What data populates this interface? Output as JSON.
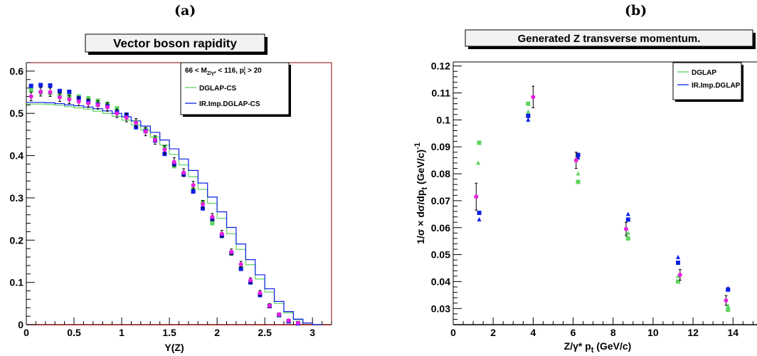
{
  "panels": {
    "a": {
      "label": "(a)"
    },
    "b": {
      "label": "(b)"
    }
  },
  "colors": {
    "frame": "#8b0000",
    "green": "#5fd35f",
    "blue": "#0a1ee6",
    "magenta": "#e81fe0",
    "black": "#000000"
  },
  "chart_data": [
    {
      "type": "scatter",
      "title": "Vector boson rapidity",
      "xlabel": "Y(Z)",
      "ylabel": "",
      "xlim": [
        0,
        3.2
      ],
      "ylim": [
        0,
        0.62
      ],
      "xticks": [
        0,
        0.5,
        1,
        1.5,
        2,
        2.5,
        3
      ],
      "xtick_labels": [
        "0",
        "0.5",
        "1",
        "1.5",
        "2",
        "2.5",
        "3"
      ],
      "yticks": [
        0,
        0.1,
        0.2,
        0.3,
        0.4,
        0.5,
        0.6
      ],
      "ytick_labels": [
        "0",
        "0.1",
        "0.2",
        "0.3",
        "0.4",
        "0.5",
        "0.6"
      ],
      "legend": {
        "position": "top-right",
        "header": "66 < M_{Z/γ*} < 116, p_t^l > 20",
        "entries": [
          {
            "name": "DGLAP-CS",
            "color": "#5fd35f"
          },
          {
            "name": "IR.Imp.DGLAP-CS",
            "color": "#0a1ee6"
          }
        ]
      },
      "histograms": [
        {
          "name": "DGLAP-CS",
          "color": "#5fd35f",
          "edges": [
            0,
            0.1,
            0.2,
            0.3,
            0.4,
            0.5,
            0.6,
            0.7,
            0.8,
            0.9,
            1.0,
            1.1,
            1.2,
            1.3,
            1.4,
            1.5,
            1.6,
            1.7,
            1.8,
            1.9,
            2.0,
            2.1,
            2.2,
            2.3,
            2.4,
            2.5,
            2.6,
            2.7,
            2.8,
            2.9,
            3.0,
            3.1
          ],
          "values": [
            0.522,
            0.522,
            0.521,
            0.519,
            0.516,
            0.513,
            0.51,
            0.505,
            0.5,
            0.493,
            0.484,
            0.473,
            0.46,
            0.444,
            0.425,
            0.403,
            0.378,
            0.35,
            0.32,
            0.287,
            0.252,
            0.215,
            0.178,
            0.142,
            0.108,
            0.077,
            0.05,
            0.028,
            0.012,
            0.004,
            0.0
          ]
        },
        {
          "name": "IR.Imp.DGLAP-CS",
          "color": "#0a1ee6",
          "edges": [
            0,
            0.1,
            0.2,
            0.3,
            0.4,
            0.5,
            0.6,
            0.7,
            0.8,
            0.9,
            1.0,
            1.1,
            1.2,
            1.3,
            1.4,
            1.5,
            1.6,
            1.7,
            1.8,
            1.9,
            2.0,
            2.1,
            2.2,
            2.3,
            2.4,
            2.5,
            2.6,
            2.7,
            2.8,
            2.9,
            3.0,
            3.1
          ],
          "values": [
            0.526,
            0.526,
            0.525,
            0.523,
            0.52,
            0.518,
            0.515,
            0.511,
            0.506,
            0.5,
            0.492,
            0.482,
            0.47,
            0.455,
            0.437,
            0.416,
            0.392,
            0.365,
            0.335,
            0.302,
            0.267,
            0.23,
            0.191,
            0.154,
            0.118,
            0.085,
            0.055,
            0.031,
            0.013,
            0.004,
            0.0
          ]
        }
      ],
      "markers": [
        {
          "name": "green-squares",
          "shape": "square",
          "color": "#5fd35f",
          "x": [
            0.05,
            0.15,
            0.25,
            0.35,
            0.45,
            0.55,
            0.65,
            0.75,
            0.85,
            0.95,
            1.05,
            1.15,
            1.25,
            1.35,
            1.45,
            1.55,
            1.65,
            1.75,
            1.85,
            1.95,
            2.05,
            2.15,
            2.25,
            2.35,
            2.45,
            2.55,
            2.65,
            2.75,
            2.85
          ],
          "y": [
            0.555,
            0.55,
            0.548,
            0.545,
            0.541,
            0.54,
            0.536,
            0.53,
            0.523,
            0.512,
            0.497,
            0.48,
            0.462,
            0.442,
            0.42,
            0.375,
            0.355,
            0.32,
            0.29,
            0.24,
            0.21,
            0.168,
            0.135,
            0.1,
            0.072,
            0.045,
            0.022,
            0.008,
            0.004
          ]
        },
        {
          "name": "blue-squares",
          "shape": "square",
          "color": "#0a1ee6",
          "x": [
            0.05,
            0.15,
            0.25,
            0.35,
            0.45,
            0.55,
            0.65,
            0.75,
            0.85,
            0.95,
            1.05,
            1.15,
            1.25,
            1.35,
            1.45,
            1.55,
            1.65,
            1.75,
            1.85,
            1.95,
            2.05,
            2.15,
            2.25,
            2.35,
            2.45,
            2.55,
            2.65,
            2.75,
            2.85
          ],
          "y": [
            0.565,
            0.567,
            0.566,
            0.553,
            0.551,
            0.536,
            0.528,
            0.521,
            0.517,
            0.503,
            0.497,
            0.467,
            0.458,
            0.436,
            0.404,
            0.38,
            0.355,
            0.315,
            0.275,
            0.25,
            0.21,
            0.17,
            0.132,
            0.1,
            0.07,
            0.044,
            0.023,
            0.008,
            0.003
          ]
        },
        {
          "name": "black-data-points",
          "shape": "circle",
          "color": "#e81fe0",
          "errorbars": true,
          "x": [
            0.05,
            0.15,
            0.25,
            0.35,
            0.45,
            0.55,
            0.65,
            0.75,
            0.85,
            0.95,
            1.05,
            1.15,
            1.25,
            1.35,
            1.45,
            1.55,
            1.65,
            1.75,
            1.85,
            1.95,
            2.05,
            2.15,
            2.25,
            2.35,
            2.45,
            2.55,
            2.65,
            2.75,
            2.85
          ],
          "y": [
            0.54,
            0.551,
            0.55,
            0.538,
            0.533,
            0.528,
            0.524,
            0.52,
            0.515,
            0.5,
            0.49,
            0.478,
            0.457,
            0.437,
            0.414,
            0.385,
            0.36,
            0.33,
            0.285,
            0.255,
            0.215,
            0.172,
            0.143,
            0.105,
            0.075,
            0.045,
            0.024,
            0.01,
            0.004
          ],
          "err": [
            0.01,
            0.01,
            0.01,
            0.01,
            0.01,
            0.01,
            0.01,
            0.01,
            0.01,
            0.01,
            0.01,
            0.01,
            0.01,
            0.01,
            0.01,
            0.01,
            0.009,
            0.009,
            0.009,
            0.008,
            0.008,
            0.007,
            0.007,
            0.006,
            0.006,
            0.005,
            0.004,
            0.003,
            0.003
          ]
        }
      ]
    },
    {
      "type": "scatter",
      "title": "Generated Z transverse momentum.",
      "xlabel": "Z/γ* p_t (GeV/c)",
      "ylabel": "1/σ × dσ/dp_t (GeV/c)^-1",
      "xlim": [
        0,
        15.2
      ],
      "ylim": [
        0.024,
        0.1215
      ],
      "xticks": [
        0,
        2,
        4,
        6,
        8,
        10,
        12,
        14
      ],
      "xtick_labels": [
        "0",
        "2",
        "4",
        "6",
        "8",
        "10",
        "12",
        "14"
      ],
      "yticks": [
        0.03,
        0.04,
        0.05,
        0.06,
        0.07,
        0.08,
        0.09,
        0.1,
        0.11,
        0.12
      ],
      "ytick_labels": [
        "0.03",
        "0.04",
        "0.05",
        "0.06",
        "0.07",
        "0.08",
        "0.09",
        "0.1",
        "0.11",
        "0.12"
      ],
      "legend": {
        "position": "top-right",
        "entries": [
          {
            "name": "DGLAP",
            "color": "#5fd35f"
          },
          {
            "name": "IR.Imp.DGLAP",
            "color": "#0a1ee6"
          }
        ]
      },
      "markers": [
        {
          "name": "green-squares",
          "shape": "square",
          "color": "#5fd35f",
          "x": [
            1.3,
            3.75,
            6.25,
            8.75,
            11.25,
            13.75
          ],
          "y": [
            0.0915,
            0.106,
            0.077,
            0.056,
            0.04,
            0.0295
          ]
        },
        {
          "name": "green-triangles",
          "shape": "triangle",
          "color": "#5fd35f",
          "x": [
            1.25,
            3.75,
            6.25,
            8.75,
            11.25,
            13.75
          ],
          "y": [
            0.084,
            0.103,
            0.08,
            0.058,
            0.042,
            0.031
          ]
        },
        {
          "name": "blue-squares",
          "shape": "square",
          "color": "#0a1ee6",
          "x": [
            1.3,
            3.75,
            6.25,
            8.75,
            11.25,
            13.75
          ],
          "y": [
            0.0655,
            0.1015,
            0.087,
            0.063,
            0.047,
            0.037
          ]
        },
        {
          "name": "blue-triangles",
          "shape": "triangle",
          "color": "#0a1ee6",
          "x": [
            1.3,
            3.75,
            6.25,
            8.75,
            11.25,
            13.75
          ],
          "y": [
            0.063,
            0.1,
            0.086,
            0.065,
            0.049,
            0.0375
          ]
        },
        {
          "name": "black-data-points",
          "shape": "circle",
          "color": "#e81fe0",
          "errorbars": true,
          "x": [
            1.15,
            4.0,
            6.15,
            8.65,
            11.35,
            13.65
          ],
          "y": [
            0.0715,
            0.1085,
            0.085,
            0.0595,
            0.0425,
            0.033
          ],
          "err": [
            0.005,
            0.004,
            0.003,
            0.0025,
            0.002,
            0.0018
          ]
        }
      ]
    }
  ]
}
